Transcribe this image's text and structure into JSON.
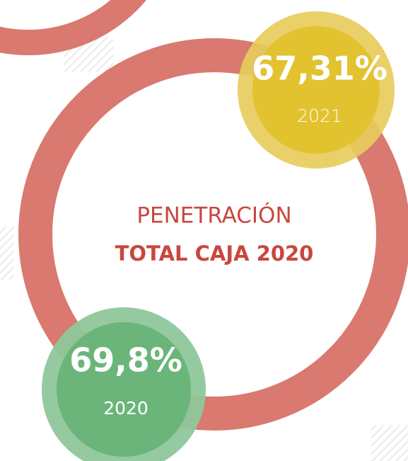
{
  "center": {
    "line1": "PENETRACIÓN",
    "line2": "TOTAL CAJA 2020"
  },
  "bubbles": [
    {
      "value": "67,31%",
      "year": "2021"
    },
    {
      "value": "69,8%",
      "year": "2020"
    }
  ]
}
